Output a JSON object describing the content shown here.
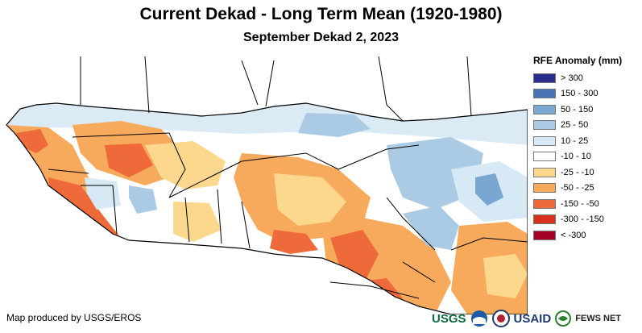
{
  "header": {
    "title": "Current Dekad - Long Term Mean (1920-1980)",
    "subtitle": "September Dekad 2, 2023"
  },
  "legend": {
    "title": "RFE Anomaly (mm)",
    "items": [
      {
        "label": "> 300",
        "color": "#2b2d8f"
      },
      {
        "label": "150 - 300",
        "color": "#4a74b8"
      },
      {
        "label": "50 - 150",
        "color": "#7aa6d2"
      },
      {
        "label": "25 - 50",
        "color": "#abcbe4"
      },
      {
        "label": "10 - 25",
        "color": "#d7e9f5"
      },
      {
        "label": "-10 - 10",
        "color": "#ffffff"
      },
      {
        "label": "-25 - -10",
        "color": "#fbd88e"
      },
      {
        "label": "-50 - -25",
        "color": "#f7aa5c"
      },
      {
        "label": "-150 - -50",
        "color": "#ef6a3b"
      },
      {
        "label": "-300 - -150",
        "color": "#d7301f"
      },
      {
        "label": "< -300",
        "color": "#a50026"
      }
    ]
  },
  "footer": {
    "credit": "Map produced by USGS/EROS",
    "logos": [
      "USGS",
      "USAID",
      "FEWS NET"
    ]
  },
  "colors": {
    "land_neutral": "#ffffff",
    "border": "#000000"
  }
}
